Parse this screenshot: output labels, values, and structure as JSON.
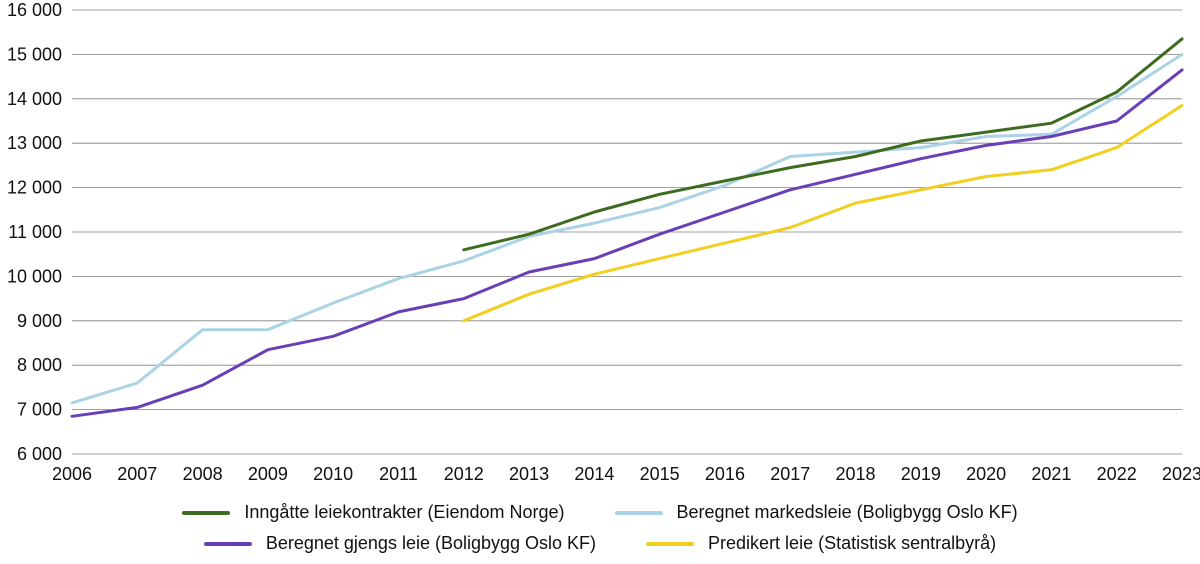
{
  "chart": {
    "type": "line",
    "background_color": "#ffffff",
    "grid_color": "#808080",
    "axis_color": "#808080",
    "label_color": "#111111",
    "label_fontsize": 18,
    "tick_fontsize": 18,
    "line_width": 3,
    "x": {
      "years": [
        2006,
        2007,
        2008,
        2009,
        2010,
        2011,
        2012,
        2013,
        2014,
        2015,
        2016,
        2017,
        2018,
        2019,
        2020,
        2021,
        2022,
        2023
      ]
    },
    "y": {
      "min": 6000,
      "max": 16000,
      "step": 1000,
      "tick_labels": [
        "6 000",
        "7 000",
        "8 000",
        "9 000",
        "10 000",
        "11 000",
        "12 000",
        "13 000",
        "14 000",
        "15 000",
        "16 000"
      ]
    },
    "series": [
      {
        "id": "markedsleie",
        "label": "Beregnet markedsleie (Boligbygg Oslo KF)",
        "color": "#aad3e6",
        "start_year": 2006,
        "values": [
          7150,
          7600,
          8800,
          8800,
          9400,
          9950,
          10350,
          10900,
          11200,
          11550,
          12050,
          12700,
          12800,
          12900,
          13150,
          13200,
          14050,
          15000
        ]
      },
      {
        "id": "gjengs",
        "label": "Beregnet gjengs leie (Boligbygg Oslo KF)",
        "color": "#6a3fb5",
        "start_year": 2006,
        "values": [
          6850,
          7050,
          7550,
          8350,
          8650,
          9200,
          9500,
          10100,
          10400,
          10950,
          11450,
          11950,
          12300,
          12650,
          12950,
          13150,
          13500,
          14650
        ]
      },
      {
        "id": "inngatte",
        "label": "Inngåtte leiekontrakter (Eiendom Norge)",
        "color": "#3d6b1f",
        "start_year": 2012,
        "values": [
          10600,
          10950,
          11450,
          11850,
          12150,
          12450,
          12700,
          13050,
          13250,
          13450,
          14150,
          15350
        ]
      },
      {
        "id": "predikert",
        "label": "Predikert leie (Statistisk sentralbyrå)",
        "color": "#f2cf1f",
        "start_year": 2012,
        "values": [
          9000,
          9600,
          10050,
          10400,
          10750,
          11100,
          11650,
          11950,
          12250,
          12400,
          12900,
          13850
        ]
      }
    ],
    "legend_order": [
      "inngatte",
      "markedsleie",
      "gjengs",
      "predikert"
    ]
  }
}
